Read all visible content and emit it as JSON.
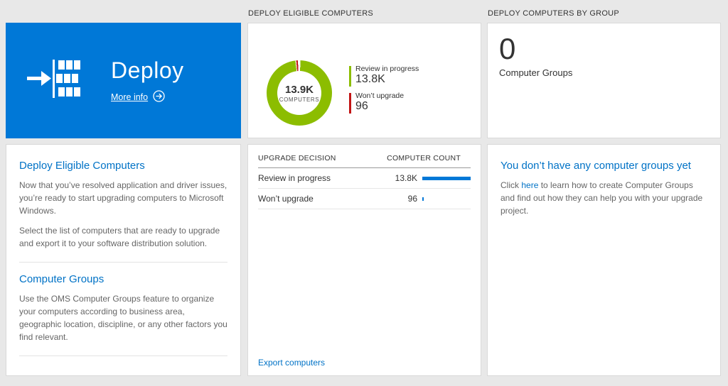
{
  "colors": {
    "page_bg": "#e8e8e8",
    "tile_blue": "#0078d7",
    "link_blue": "#0072c6",
    "bar_blue": "#0078d7",
    "green": "#8cbd00",
    "red": "#c21515"
  },
  "headers": {
    "middle": "DEPLOY ELIGIBLE COMPUTERS",
    "right": "DEPLOY COMPUTERS BY GROUP"
  },
  "deploy_tile": {
    "title": "Deploy",
    "more_info_label": "More info",
    "icons": {
      "tile_icon": "arrow-into-stack-icon",
      "more_info_icon": "arrow-in-circle-icon"
    }
  },
  "left_panel": {
    "section1_title": "Deploy Eligible Computers",
    "section1_p1": "Now that you’ve resolved application and driver issues, you’re ready to start upgrading computers to Microsoft Windows.",
    "section1_p2": "Select the list of computers that are ready to upgrade and export it to your software distribution solution.",
    "section2_title": "Computer Groups",
    "section2_p1": "Use the OMS Computer Groups feature to organize your computers according to business area, geographic location, discipline, or any other factors you find relevant."
  },
  "chart_data": {
    "type": "pie",
    "title": "DEPLOY ELIGIBLE COMPUTERS",
    "center_value": "13.9K",
    "center_label": "COMPUTERS",
    "total_value": 13900,
    "legend_position": "right",
    "series": [
      {
        "name": "Review in progress",
        "value": 13800,
        "display": "13.8K",
        "color": "#8cbd00"
      },
      {
        "name": "Won’t upgrade",
        "value": 96,
        "display": "96",
        "color": "#c21515"
      }
    ]
  },
  "table": {
    "columns": [
      "UPGRADE DECISION",
      "COMPUTER COUNT"
    ],
    "rows": [
      {
        "decision": "Review in progress",
        "count": "13.8K",
        "value": 13800,
        "bar_pct": 100
      },
      {
        "decision": "Won’t upgrade",
        "count": "96",
        "value": 96,
        "bar_pct": 3
      }
    ],
    "export_label": "Export computers"
  },
  "groups_tile": {
    "value": "0",
    "label": "Computer Groups"
  },
  "groups_panel": {
    "title": "You don’t have any computer groups yet",
    "text_before": "Click ",
    "link_label": "here",
    "text_after": " to learn how to create Computer Groups and find out how they can help you with your upgrade project."
  }
}
